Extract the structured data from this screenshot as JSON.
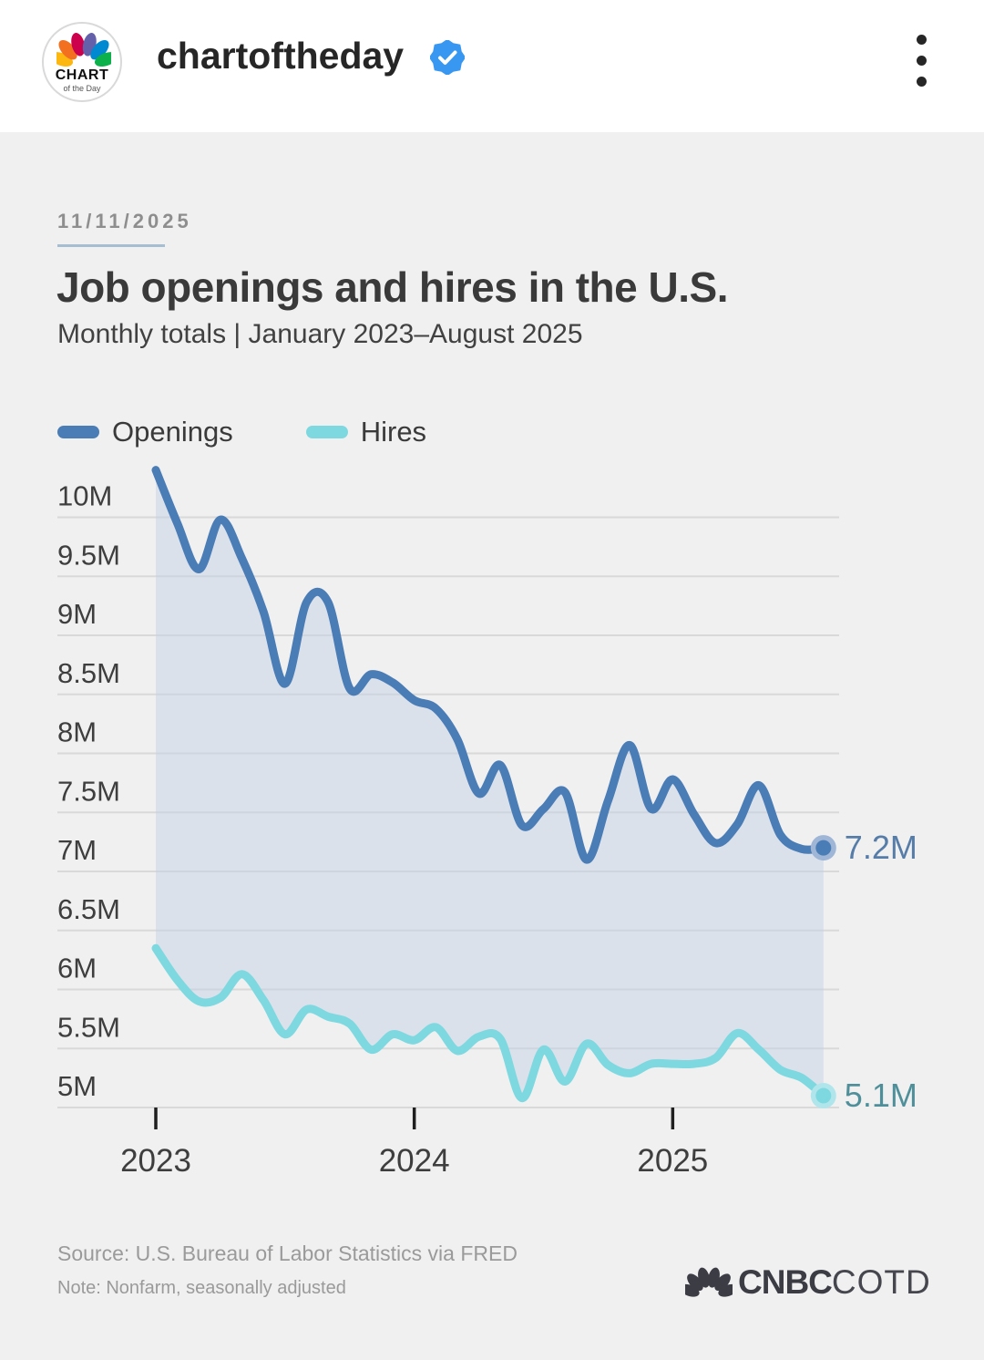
{
  "header": {
    "username": "chartoftheday",
    "verified": true,
    "avatar_line1": "CHART",
    "avatar_line2": "of the Day"
  },
  "post": {
    "date": "11/11/2025",
    "title": "Job openings and hires in the U.S.",
    "subtitle": "Monthly totals | January 2023–August 2025",
    "source": "Source: U.S. Bureau of Labor Statistics via FRED",
    "note": "Note: Nonfarm, seasonally adjusted",
    "brand_network": "CNBC",
    "brand_suffix": "COTD"
  },
  "chart_data": {
    "type": "line",
    "title": "Job openings and hires in the U.S.",
    "subtitle": "Monthly totals | January 2023–August 2025",
    "x": [
      "2023-01",
      "2023-02",
      "2023-03",
      "2023-04",
      "2023-05",
      "2023-06",
      "2023-07",
      "2023-08",
      "2023-09",
      "2023-10",
      "2023-11",
      "2023-12",
      "2024-01",
      "2024-02",
      "2024-03",
      "2024-04",
      "2024-05",
      "2024-06",
      "2024-07",
      "2024-08",
      "2024-09",
      "2024-10",
      "2024-11",
      "2024-12",
      "2025-01",
      "2025-02",
      "2025-03",
      "2025-04",
      "2025-05",
      "2025-06",
      "2025-07",
      "2025-08"
    ],
    "series": [
      {
        "name": "Openings",
        "color": "#4a7cb5",
        "end_label": "7.2M",
        "end_label_color": "#567ca8",
        "halo_color": "#9fb6d6",
        "values": [
          10.4,
          9.95,
          9.56,
          9.98,
          9.65,
          9.2,
          8.59,
          9.28,
          9.28,
          8.55,
          8.67,
          8.6,
          8.45,
          8.38,
          8.12,
          7.66,
          7.9,
          7.39,
          7.53,
          7.67,
          7.1,
          7.6,
          8.07,
          7.53,
          7.78,
          7.48,
          7.24,
          7.4,
          7.73,
          7.31,
          7.19,
          7.2
        ]
      },
      {
        "name": "Hires",
        "color": "#7ed8e0",
        "end_label": "5.1M",
        "end_label_color": "#4f8f9a",
        "halo_color": "#b0e6eb",
        "values": [
          6.35,
          6.08,
          5.9,
          5.93,
          6.13,
          5.91,
          5.62,
          5.83,
          5.77,
          5.71,
          5.49,
          5.62,
          5.57,
          5.68,
          5.48,
          5.6,
          5.58,
          5.08,
          5.49,
          5.22,
          5.54,
          5.36,
          5.29,
          5.37,
          5.37,
          5.37,
          5.42,
          5.63,
          5.49,
          5.32,
          5.25,
          5.1
        ]
      }
    ],
    "yticks": [
      {
        "v": 10,
        "label": "10M"
      },
      {
        "v": 9.5,
        "label": "9.5M"
      },
      {
        "v": 9,
        "label": "9M"
      },
      {
        "v": 8.5,
        "label": "8.5M"
      },
      {
        "v": 8,
        "label": "8M"
      },
      {
        "v": 7.5,
        "label": "7.5M"
      },
      {
        "v": 7,
        "label": "7M"
      },
      {
        "v": 6.5,
        "label": "6.5M"
      },
      {
        "v": 6,
        "label": "6M"
      },
      {
        "v": 5.5,
        "label": "5.5M"
      },
      {
        "v": 5,
        "label": "5M"
      }
    ],
    "xticks": [
      {
        "i": 0,
        "label": "2023"
      },
      {
        "i": 12,
        "label": "2024"
      },
      {
        "i": 24,
        "label": "2025"
      }
    ],
    "ylim": [
      5,
      10.5
    ],
    "grid": "horizontal",
    "legend_position": "top-left",
    "area_fill_between": true,
    "area_fill_color": "rgba(197,209,230,0.5)",
    "grid_color": "#d9d9d9",
    "tick_color": "#1f1f1f",
    "axis_label_color": "#3e3e3e"
  }
}
